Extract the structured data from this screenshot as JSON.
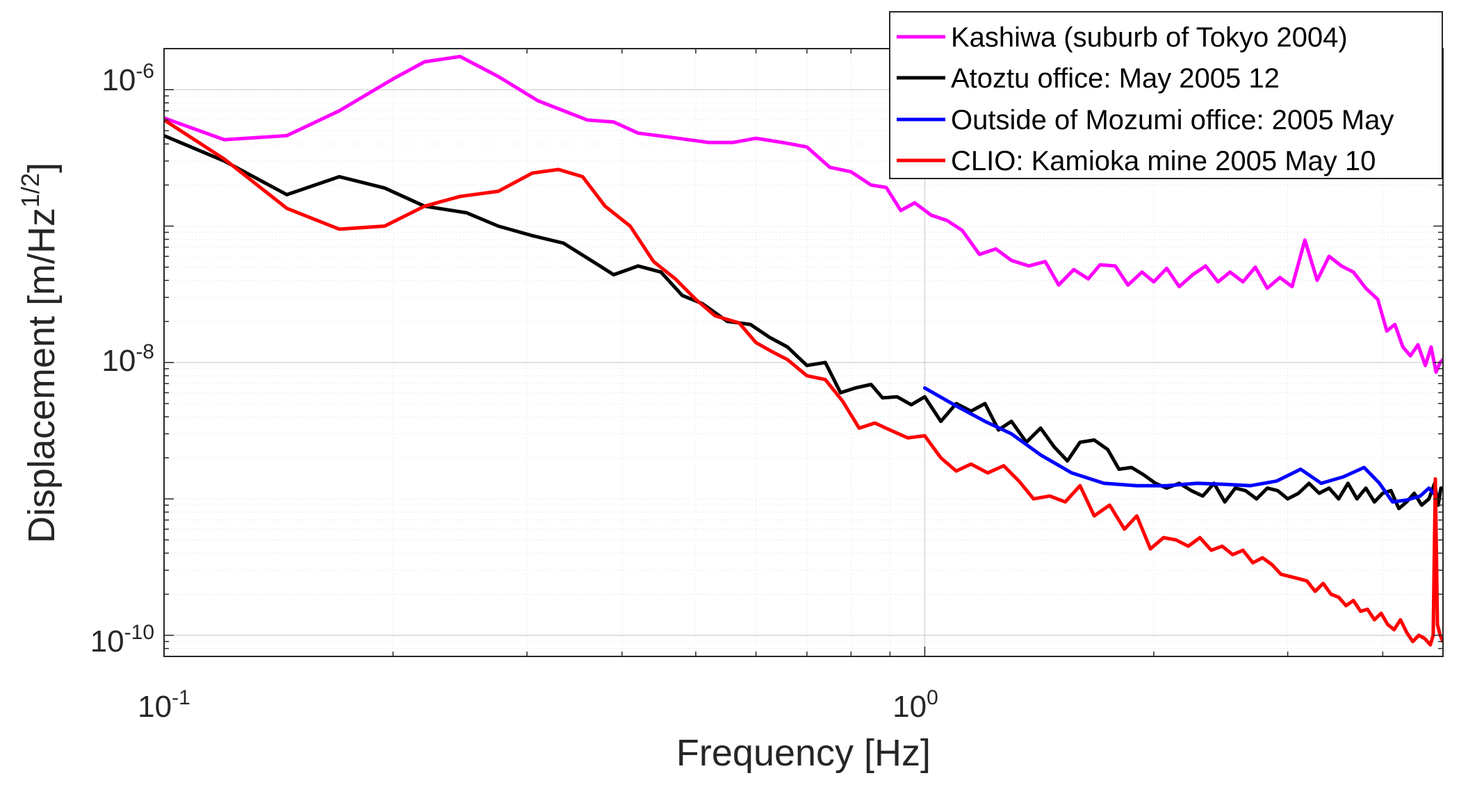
{
  "chart_data": {
    "type": "line",
    "xscale": "log",
    "yscale": "log",
    "xlim": [
      0.1,
      4.8
    ],
    "ylim": [
      7e-11,
      2e-06
    ],
    "xlabel": "Frequency [Hz]",
    "ylabel": "Displacement [m/Hz",
    "ylabel_sup": "1/2",
    "ylabel_end": "]",
    "x_ticks": [
      {
        "value": 0.1,
        "base": "10",
        "exp": "-1"
      },
      {
        "value": 1,
        "base": "10",
        "exp": "0"
      }
    ],
    "y_ticks": [
      {
        "value": 1e-10,
        "base": "10",
        "exp": "-10"
      },
      {
        "value": 1e-08,
        "base": "10",
        "exp": "-8"
      },
      {
        "value": 1e-06,
        "base": "10",
        "exp": "-6"
      }
    ],
    "grid": true,
    "legend_position": "top-right",
    "series": [
      {
        "name": "Kashiwa (suburb of Tokyo 2004)",
        "color": "#ff00ff",
        "points": [
          [
            0.1,
            6.2e-07
          ],
          [
            0.12,
            4.3e-07
          ],
          [
            0.145,
            4.6e-07
          ],
          [
            0.17,
            7e-07
          ],
          [
            0.2,
            1.2e-06
          ],
          [
            0.22,
            1.6e-06
          ],
          [
            0.245,
            1.75e-06
          ],
          [
            0.275,
            1.25e-06
          ],
          [
            0.31,
            8.3e-07
          ],
          [
            0.36,
            6e-07
          ],
          [
            0.39,
            5.8e-07
          ],
          [
            0.42,
            4.8e-07
          ],
          [
            0.46,
            4.5e-07
          ],
          [
            0.52,
            4.1e-07
          ],
          [
            0.56,
            4.1e-07
          ],
          [
            0.6,
            4.4e-07
          ],
          [
            0.65,
            4.1e-07
          ],
          [
            0.7,
            3.8e-07
          ],
          [
            0.75,
            2.7e-07
          ],
          [
            0.8,
            2.5e-07
          ],
          [
            0.85,
            2e-07
          ],
          [
            0.89,
            1.92e-07
          ],
          [
            0.93,
            1.3e-07
          ],
          [
            0.97,
            1.48e-07
          ],
          [
            1.02,
            1.2e-07
          ],
          [
            1.07,
            1.1e-07
          ],
          [
            1.12,
            9.3e-08
          ],
          [
            1.18,
            6.2e-08
          ],
          [
            1.24,
            6.8e-08
          ],
          [
            1.3,
            5.6e-08
          ],
          [
            1.37,
            5.1e-08
          ],
          [
            1.44,
            5.5e-08
          ],
          [
            1.5,
            3.7e-08
          ],
          [
            1.57,
            4.8e-08
          ],
          [
            1.64,
            4.1e-08
          ],
          [
            1.7,
            5.2e-08
          ],
          [
            1.78,
            5.1e-08
          ],
          [
            1.85,
            3.7e-08
          ],
          [
            1.93,
            4.6e-08
          ],
          [
            2.0,
            3.9e-08
          ],
          [
            2.08,
            4.9e-08
          ],
          [
            2.16,
            3.6e-08
          ],
          [
            2.25,
            4.4e-08
          ],
          [
            2.34,
            5.1e-08
          ],
          [
            2.43,
            3.9e-08
          ],
          [
            2.52,
            4.6e-08
          ],
          [
            2.62,
            3.9e-08
          ],
          [
            2.72,
            5e-08
          ],
          [
            2.82,
            3.5e-08
          ],
          [
            2.93,
            4.2e-08
          ],
          [
            3.04,
            3.6e-08
          ],
          [
            3.16,
            7.9e-08
          ],
          [
            3.28,
            4e-08
          ],
          [
            3.4,
            6e-08
          ],
          [
            3.53,
            5.1e-08
          ],
          [
            3.66,
            4.6e-08
          ],
          [
            3.8,
            3.5e-08
          ],
          [
            3.94,
            2.9e-08
          ],
          [
            4.05,
            1.7e-08
          ],
          [
            4.15,
            1.9e-08
          ],
          [
            4.25,
            1.3e-08
          ],
          [
            4.35,
            1.12e-08
          ],
          [
            4.45,
            1.35e-08
          ],
          [
            4.55,
            9.5e-09
          ],
          [
            4.63,
            1.3e-08
          ],
          [
            4.7,
            8.5e-09
          ],
          [
            4.76,
            1e-08
          ],
          [
            4.8,
            1.05e-08
          ]
        ]
      },
      {
        "name": "Atoztu office: May 2005 12",
        "color": "#000000",
        "points": [
          [
            0.1,
            4.6e-07
          ],
          [
            0.12,
            3e-07
          ],
          [
            0.145,
            1.7e-07
          ],
          [
            0.17,
            2.3e-07
          ],
          [
            0.195,
            1.9e-07
          ],
          [
            0.22,
            1.4e-07
          ],
          [
            0.25,
            1.25e-07
          ],
          [
            0.275,
            1e-07
          ],
          [
            0.305,
            8.5e-08
          ],
          [
            0.335,
            7.5e-08
          ],
          [
            0.37,
            5.3e-08
          ],
          [
            0.39,
            4.4e-08
          ],
          [
            0.42,
            5.1e-08
          ],
          [
            0.45,
            4.6e-08
          ],
          [
            0.48,
            3.1e-08
          ],
          [
            0.51,
            2.7e-08
          ],
          [
            0.55,
            2e-08
          ],
          [
            0.59,
            1.9e-08
          ],
          [
            0.625,
            1.53e-08
          ],
          [
            0.66,
            1.3e-08
          ],
          [
            0.7,
            9.5e-09
          ],
          [
            0.74,
            1e-08
          ],
          [
            0.775,
            6e-09
          ],
          [
            0.81,
            6.5e-09
          ],
          [
            0.85,
            6.9e-09
          ],
          [
            0.88,
            5.5e-09
          ],
          [
            0.92,
            5.6e-09
          ],
          [
            0.96,
            4.9e-09
          ],
          [
            1.0,
            5.6e-09
          ],
          [
            1.05,
            3.7e-09
          ],
          [
            1.1,
            5e-09
          ],
          [
            1.15,
            4.4e-09
          ],
          [
            1.2,
            5e-09
          ],
          [
            1.25,
            3.2e-09
          ],
          [
            1.3,
            3.7e-09
          ],
          [
            1.36,
            2.6e-09
          ],
          [
            1.42,
            3.3e-09
          ],
          [
            1.48,
            2.4e-09
          ],
          [
            1.54,
            1.9e-09
          ],
          [
            1.6,
            2.6e-09
          ],
          [
            1.67,
            2.7e-09
          ],
          [
            1.74,
            2.3e-09
          ],
          [
            1.8,
            1.65e-09
          ],
          [
            1.87,
            1.7e-09
          ],
          [
            1.94,
            1.5e-09
          ],
          [
            2.01,
            1.3e-09
          ],
          [
            2.08,
            1.2e-09
          ],
          [
            2.16,
            1.3e-09
          ],
          [
            2.24,
            1.15e-09
          ],
          [
            2.32,
            1.05e-09
          ],
          [
            2.4,
            1.3e-09
          ],
          [
            2.48,
            9.5e-10
          ],
          [
            2.56,
            1.2e-09
          ],
          [
            2.64,
            1.15e-09
          ],
          [
            2.73,
            1e-09
          ],
          [
            2.82,
            1.2e-09
          ],
          [
            2.91,
            1.15e-09
          ],
          [
            3.0,
            1e-09
          ],
          [
            3.1,
            1.1e-09
          ],
          [
            3.2,
            1.3e-09
          ],
          [
            3.3,
            1.1e-09
          ],
          [
            3.4,
            1.2e-09
          ],
          [
            3.5,
            1e-09
          ],
          [
            3.6,
            1.3e-09
          ],
          [
            3.7,
            1e-09
          ],
          [
            3.8,
            1.2e-09
          ],
          [
            3.9,
            9.5e-10
          ],
          [
            4.0,
            1.1e-09
          ],
          [
            4.1,
            1.15e-09
          ],
          [
            4.2,
            8.5e-10
          ],
          [
            4.3,
            9.5e-10
          ],
          [
            4.4,
            1.1e-09
          ],
          [
            4.5,
            9e-10
          ],
          [
            4.6,
            1e-09
          ],
          [
            4.68,
            1.3e-09
          ],
          [
            4.73,
            9e-10
          ],
          [
            4.77,
            1.2e-09
          ],
          [
            4.8,
            1.2e-09
          ]
        ]
      },
      {
        "name": "Outside of Mozumi office: 2005 May",
        "color": "#0000ff",
        "points": [
          [
            1.0,
            6.5e-09
          ],
          [
            1.1,
            4.8e-09
          ],
          [
            1.2,
            3.7e-09
          ],
          [
            1.3,
            3e-09
          ],
          [
            1.42,
            2.1e-09
          ],
          [
            1.56,
            1.55e-09
          ],
          [
            1.72,
            1.3e-09
          ],
          [
            1.9,
            1.25e-09
          ],
          [
            2.08,
            1.25e-09
          ],
          [
            2.28,
            1.3e-09
          ],
          [
            2.48,
            1.28e-09
          ],
          [
            2.68,
            1.25e-09
          ],
          [
            2.9,
            1.35e-09
          ],
          [
            3.12,
            1.65e-09
          ],
          [
            3.32,
            1.3e-09
          ],
          [
            3.55,
            1.45e-09
          ],
          [
            3.78,
            1.7e-09
          ],
          [
            3.96,
            1.3e-09
          ],
          [
            4.12,
            9.5e-10
          ],
          [
            4.3,
            9.8e-10
          ],
          [
            4.48,
            1.05e-09
          ],
          [
            4.6,
            1.2e-09
          ],
          [
            4.7,
            1.05e-09
          ]
        ]
      },
      {
        "name": "CLIO: Kamioka mine  2005 May 10",
        "color": "#ff0000",
        "points": [
          [
            0.1,
            6e-07
          ],
          [
            0.12,
            3.1e-07
          ],
          [
            0.145,
            1.35e-07
          ],
          [
            0.17,
            9.5e-08
          ],
          [
            0.195,
            1e-07
          ],
          [
            0.22,
            1.4e-07
          ],
          [
            0.245,
            1.65e-07
          ],
          [
            0.275,
            1.8e-07
          ],
          [
            0.305,
            2.45e-07
          ],
          [
            0.33,
            2.6e-07
          ],
          [
            0.355,
            2.3e-07
          ],
          [
            0.38,
            1.4e-07
          ],
          [
            0.41,
            1e-07
          ],
          [
            0.44,
            5.5e-08
          ],
          [
            0.47,
            4.1e-08
          ],
          [
            0.5,
            2.9e-08
          ],
          [
            0.53,
            2.2e-08
          ],
          [
            0.57,
            1.95e-08
          ],
          [
            0.6,
            1.4e-08
          ],
          [
            0.63,
            1.2e-08
          ],
          [
            0.66,
            1.05e-08
          ],
          [
            0.7,
            8e-09
          ],
          [
            0.74,
            7.5e-09
          ],
          [
            0.78,
            5.2e-09
          ],
          [
            0.82,
            3.3e-09
          ],
          [
            0.86,
            3.6e-09
          ],
          [
            0.9,
            3.2e-09
          ],
          [
            0.95,
            2.8e-09
          ],
          [
            1.0,
            2.9e-09
          ],
          [
            1.05,
            2e-09
          ],
          [
            1.1,
            1.6e-09
          ],
          [
            1.15,
            1.8e-09
          ],
          [
            1.21,
            1.55e-09
          ],
          [
            1.27,
            1.75e-09
          ],
          [
            1.33,
            1.35e-09
          ],
          [
            1.39,
            1e-09
          ],
          [
            1.46,
            1.05e-09
          ],
          [
            1.53,
            9.5e-10
          ],
          [
            1.6,
            1.25e-09
          ],
          [
            1.67,
            7.5e-10
          ],
          [
            1.75,
            9e-10
          ],
          [
            1.83,
            6e-10
          ],
          [
            1.9,
            7.5e-10
          ],
          [
            1.98,
            4.3e-10
          ],
          [
            2.06,
            5.2e-10
          ],
          [
            2.14,
            5e-10
          ],
          [
            2.22,
            4.5e-10
          ],
          [
            2.3,
            5.2e-10
          ],
          [
            2.38,
            4.2e-10
          ],
          [
            2.46,
            4.5e-10
          ],
          [
            2.54,
            3.9e-10
          ],
          [
            2.62,
            4.2e-10
          ],
          [
            2.7,
            3.4e-10
          ],
          [
            2.78,
            3.7e-10
          ],
          [
            2.86,
            3.3e-10
          ],
          [
            2.94,
            2.8e-10
          ],
          [
            3.02,
            2.7e-10
          ],
          [
            3.1,
            2.6e-10
          ],
          [
            3.18,
            2.5e-10
          ],
          [
            3.26,
            2.1e-10
          ],
          [
            3.34,
            2.4e-10
          ],
          [
            3.42,
            2e-10
          ],
          [
            3.5,
            1.9e-10
          ],
          [
            3.58,
            1.65e-10
          ],
          [
            3.66,
            1.8e-10
          ],
          [
            3.74,
            1.5e-10
          ],
          [
            3.82,
            1.55e-10
          ],
          [
            3.9,
            1.3e-10
          ],
          [
            3.98,
            1.45e-10
          ],
          [
            4.06,
            1.2e-10
          ],
          [
            4.14,
            1.1e-10
          ],
          [
            4.22,
            1.3e-10
          ],
          [
            4.3,
            1.05e-10
          ],
          [
            4.38,
            9e-11
          ],
          [
            4.46,
            1e-10
          ],
          [
            4.54,
            9.5e-11
          ],
          [
            4.62,
            8.5e-11
          ],
          [
            4.66,
            1e-10
          ],
          [
            4.69,
            1.4e-09
          ],
          [
            4.72,
            1.2e-10
          ],
          [
            4.76,
            1e-10
          ],
          [
            4.8,
            9e-11
          ]
        ]
      }
    ]
  }
}
